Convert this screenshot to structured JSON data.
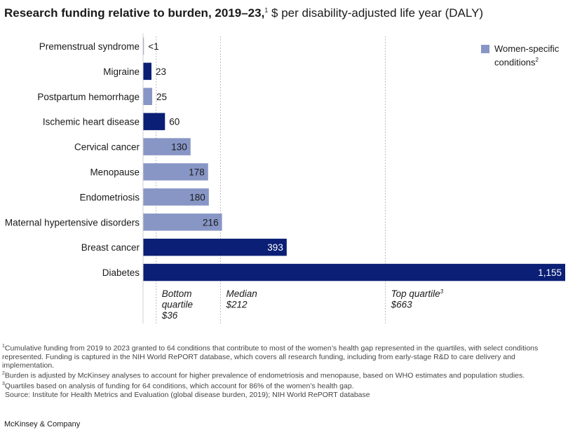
{
  "title": {
    "bold": "Research funding relative to burden, 2019–23,",
    "bold_sup": "1",
    "rest": " $ per disability-adjusted life year (DALY)"
  },
  "colors": {
    "general": "#0a1f75",
    "women": "#8896c6",
    "quartile_line": "#bbbbbb",
    "axis": "#cfcfcf"
  },
  "legend": {
    "label": "Women-specific conditions",
    "sup": "2",
    "color": "#8896c6"
  },
  "chart_data": {
    "type": "bar",
    "orientation": "horizontal",
    "categories": [
      "Premenstrual syndrome",
      "Migraine",
      "Postpartum hemorrhage",
      "Ischemic heart disease",
      "Cervical cancer",
      "Menopause",
      "Endometriosis",
      "Maternal hypertensive disorders",
      "Breast cancer",
      "Diabetes"
    ],
    "values": [
      0.5,
      23,
      25,
      60,
      130,
      178,
      180,
      216,
      393,
      1155
    ],
    "value_labels": [
      "<1",
      "23",
      "25",
      "60",
      "130",
      "178",
      "180",
      "216",
      "393",
      "1,155"
    ],
    "women_specific": [
      true,
      false,
      true,
      false,
      true,
      true,
      true,
      true,
      false,
      false
    ],
    "xlim": [
      0,
      1155
    ],
    "grid": false,
    "legend_position": "top-right",
    "reference_lines": [
      {
        "label": "Bottom quartile",
        "value": 36,
        "value_label": "$36"
      },
      {
        "label": "Median",
        "value": 212,
        "value_label": "$212"
      },
      {
        "label": "Top quartile",
        "label_sup": "3",
        "value": 663,
        "value_label": "$663"
      }
    ]
  },
  "footnotes": {
    "n1_sup": "1",
    "n1": "Cumulative funding from 2019 to 2023 granted to 64 conditions that contribute to most of the women’s health gap represented in the quartiles, with select conditions represented. Funding is captured in the NIH World RePORT database, which covers all research funding, including from early-stage R&D to care delivery and implementation.",
    "n2_sup": "2",
    "n2": "Burden is adjusted by McKinsey analyses to account for higher prevalence of endometriosis and menopause, based on WHO estimates and population studies.",
    "n3_sup": "3",
    "n3": "Quartiles based on analysis of funding for 64 conditions, which account for 86% of the women’s health gap.",
    "source": "Source: Institute for Health Metrics and Evaluation (global disease burden, 2019); NIH World RePORT database"
  },
  "brand": "McKinsey & Company"
}
